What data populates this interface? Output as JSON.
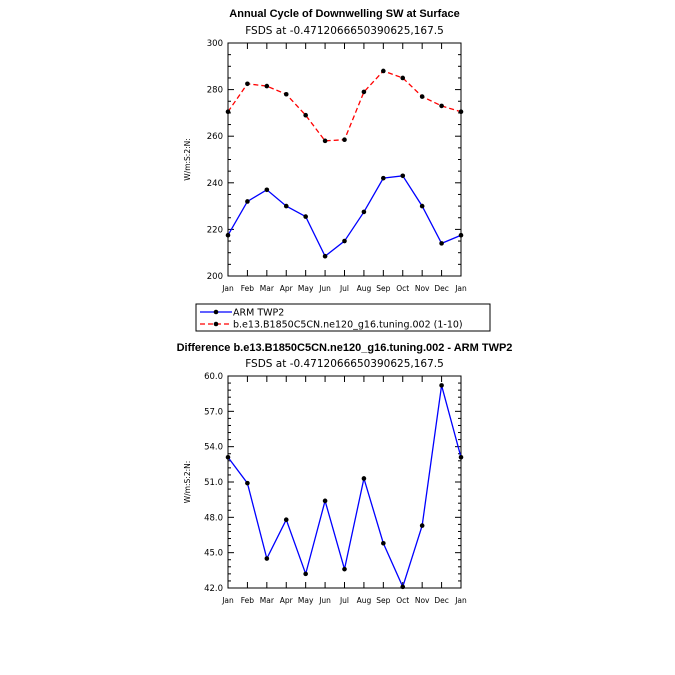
{
  "chart_data": [
    {
      "type": "line",
      "title": "Annual Cycle of Downwelling SW at Surface",
      "subtitle": "FSDS at -0.4712066650390625,167.5",
      "ylabel": "W/m:S:2:N:",
      "ylim": [
        200,
        300
      ],
      "yticks": [
        "200",
        "220",
        "240",
        "260",
        "280",
        "300"
      ],
      "categories": [
        "Jan",
        "Feb",
        "Mar",
        "Apr",
        "May",
        "Jun",
        "Jul",
        "Aug",
        "Sep",
        "Oct",
        "Nov",
        "Dec",
        "Jan"
      ],
      "series": [
        {
          "name": "ARM TWP2",
          "color": "#0000ff",
          "dash": "solid",
          "values": [
            217.5,
            232.0,
            237.0,
            230.0,
            225.5,
            208.5,
            215.0,
            227.5,
            242.0,
            243.0,
            230.0,
            214.0,
            217.5
          ]
        },
        {
          "name": "b.e13.B1850C5CN.ne120_g16.tuning.002 (1-10)",
          "color": "#ff0000",
          "dash": "dashed",
          "values": [
            270.5,
            282.5,
            281.5,
            278.0,
            269.0,
            258.0,
            258.5,
            279.0,
            288.0,
            285.0,
            277.0,
            273.0,
            270.5
          ]
        }
      ],
      "legend": "below"
    },
    {
      "type": "line",
      "title": "Difference b.e13.B1850C5CN.ne120_g16.tuning.002 - ARM TWP2",
      "subtitle": "FSDS at -0.4712066650390625,167.5",
      "ylabel": "W/m:S:2:N:",
      "ylim": [
        42.0,
        60.0
      ],
      "yticks": [
        "42.0",
        "45.0",
        "48.0",
        "51.0",
        "54.0",
        "57.0",
        "60.0"
      ],
      "categories": [
        "Jan",
        "Feb",
        "Mar",
        "Apr",
        "May",
        "Jun",
        "Jul",
        "Aug",
        "Sep",
        "Oct",
        "Nov",
        "Dec",
        "Jan"
      ],
      "series": [
        {
          "color": "#0000ff",
          "dash": "solid",
          "values": [
            53.1,
            50.9,
            44.5,
            47.8,
            43.2,
            49.4,
            43.6,
            51.3,
            45.8,
            42.1,
            47.3,
            59.2,
            53.1
          ]
        }
      ]
    }
  ]
}
